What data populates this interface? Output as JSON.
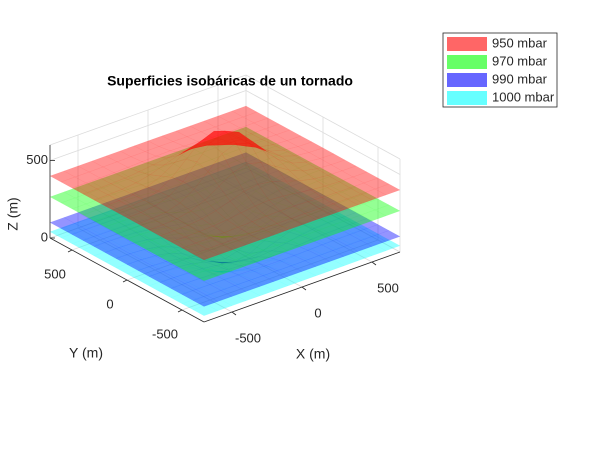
{
  "chart_data": {
    "type": "surface3d",
    "title": "Superficies isobáricas de un tornado",
    "xlabel": "X (m)",
    "ylabel": "Y (m)",
    "zlabel": "Z (m)",
    "xlim": [
      -700,
      700
    ],
    "ylim": [
      -700,
      700
    ],
    "zlim": [
      0,
      600
    ],
    "xticks": [
      -500,
      0,
      500
    ],
    "yticks": [
      -500,
      0,
      500
    ],
    "zticks": [
      0,
      500
    ],
    "grid": true,
    "legend": "top-right",
    "series": [
      {
        "name": "950 mbar",
        "color": "#ff0000",
        "z": 400
      },
      {
        "name": "970 mbar",
        "color": "#00ff00",
        "z": 265
      },
      {
        "name": "990 mbar",
        "color": "#0000ff",
        "z": 100
      },
      {
        "name": "1000 mbar",
        "color": "#00ffff",
        "z": 40
      }
    ]
  }
}
